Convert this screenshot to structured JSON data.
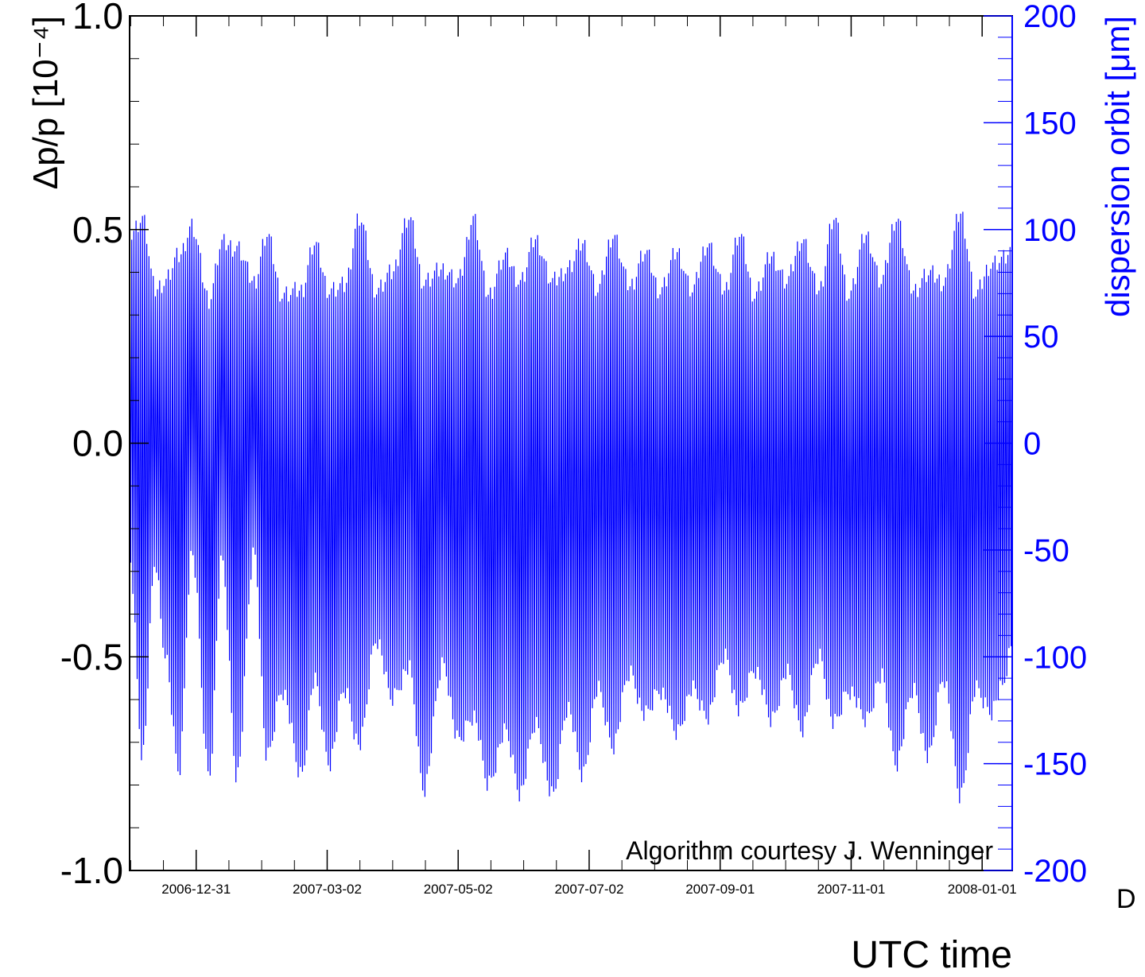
{
  "chart_data": {
    "type": "line",
    "xlabel": "UTC time",
    "ylabel": "Δp/p [10⁻⁴]",
    "ylabel2": "dispersion orbit [μm]",
    "annotation": "Algorithm courtesy J. Wenninger",
    "truncated_label": "D",
    "x_range": [
      "2006-11-30",
      "2008-01-15"
    ],
    "ylim": [
      -1.0,
      1.0
    ],
    "y2lim": [
      -200,
      200
    ],
    "x_ticks": [
      "2006-12-31",
      "2007-03-02",
      "2007-05-02",
      "2007-07-02",
      "2007-09-01",
      "2007-11-01",
      "2008-01-01"
    ],
    "y_ticks": [
      "-1.0",
      "-0.5",
      "0.0",
      "0.5",
      "1.0"
    ],
    "y2_ticks": [
      "-200",
      "-150",
      "-100",
      "-50",
      "0",
      "50",
      "100",
      "150",
      "200"
    ],
    "grid": false,
    "series": [
      {
        "color": "#0000ff",
        "sampling": "high-frequency oscillation between daily upper and lower envelope values",
        "envelope_x": [
          "2006-11-30",
          "2006-12-06",
          "2006-12-12",
          "2006-12-16",
          "2006-12-23",
          "2006-12-29",
          "2007-01-06",
          "2007-01-12",
          "2007-01-19",
          "2007-01-27",
          "2007-02-02",
          "2007-02-09",
          "2007-02-18",
          "2007-02-24",
          "2007-03-03",
          "2007-03-10",
          "2007-03-17",
          "2007-03-25",
          "2007-04-01",
          "2007-04-09",
          "2007-04-16",
          "2007-04-25",
          "2007-05-02",
          "2007-05-09",
          "2007-05-16",
          "2007-05-24",
          "2007-05-31",
          "2007-06-07",
          "2007-06-15",
          "2007-06-22",
          "2007-06-29",
          "2007-07-06",
          "2007-07-13",
          "2007-07-21",
          "2007-07-28",
          "2007-08-04",
          "2007-08-12",
          "2007-08-19",
          "2007-08-26",
          "2007-09-03",
          "2007-09-10",
          "2007-09-17",
          "2007-09-25",
          "2007-10-02",
          "2007-10-09",
          "2007-10-17",
          "2007-10-24",
          "2007-10-31",
          "2007-11-08",
          "2007-11-15",
          "2007-11-22",
          "2007-11-30",
          "2007-12-07",
          "2007-12-14",
          "2007-12-22",
          "2007-12-29",
          "2008-01-05",
          "2008-01-10",
          "2008-01-15"
        ],
        "upper_envelope": [
          0.51,
          0.55,
          0.38,
          0.4,
          0.46,
          0.53,
          0.36,
          0.49,
          0.48,
          0.4,
          0.51,
          0.37,
          0.38,
          0.49,
          0.38,
          0.39,
          0.55,
          0.38,
          0.42,
          0.55,
          0.4,
          0.43,
          0.4,
          0.55,
          0.37,
          0.46,
          0.4,
          0.5,
          0.4,
          0.43,
          0.49,
          0.38,
          0.51,
          0.39,
          0.47,
          0.38,
          0.47,
          0.38,
          0.49,
          0.38,
          0.51,
          0.37,
          0.46,
          0.4,
          0.5,
          0.38,
          0.55,
          0.37,
          0.51,
          0.4,
          0.55,
          0.38,
          0.42,
          0.4,
          0.56,
          0.37,
          0.44,
          0.45,
          0.47
        ],
        "lower_envelope": [
          -0.29,
          -0.75,
          -0.3,
          -0.5,
          -0.79,
          -0.28,
          -0.8,
          -0.3,
          -0.8,
          -0.28,
          -0.76,
          -0.6,
          -0.8,
          -0.58,
          -0.77,
          -0.6,
          -0.73,
          -0.48,
          -0.62,
          -0.55,
          -0.83,
          -0.54,
          -0.72,
          -0.66,
          -0.82,
          -0.7,
          -0.84,
          -0.68,
          -0.85,
          -0.64,
          -0.8,
          -0.6,
          -0.73,
          -0.56,
          -0.66,
          -0.6,
          -0.7,
          -0.6,
          -0.66,
          -0.52,
          -0.65,
          -0.55,
          -0.67,
          -0.56,
          -0.69,
          -0.52,
          -0.68,
          -0.6,
          -0.67,
          -0.57,
          -0.77,
          -0.6,
          -0.76,
          -0.57,
          -0.85,
          -0.6,
          -0.65,
          -0.6,
          -0.5
        ]
      }
    ]
  }
}
